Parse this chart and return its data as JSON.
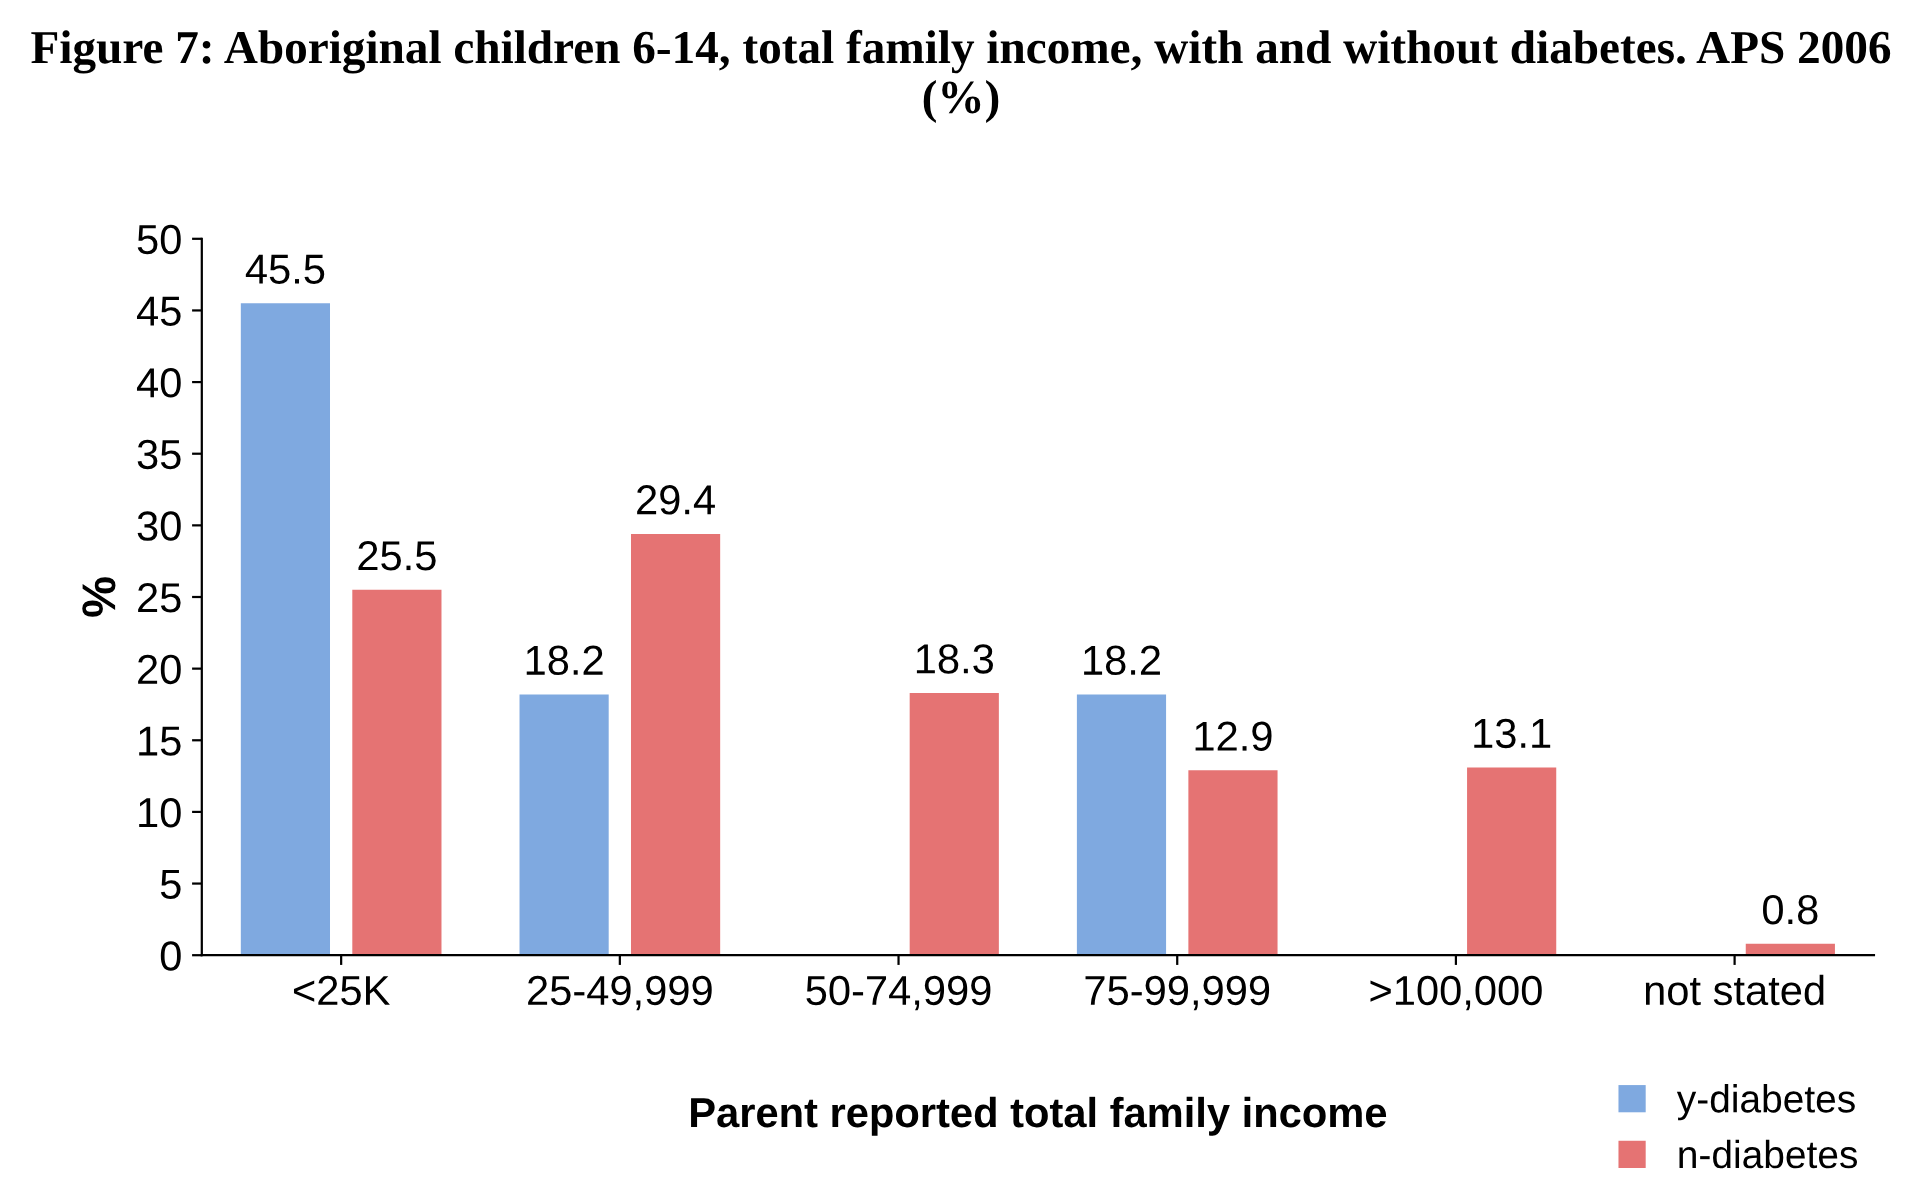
{
  "chart_data": {
    "type": "bar",
    "title": "Figure 7: Aboriginal children 6-14, total family income, with and without diabetes. APS 2006 (%)",
    "xlabel": "Parent reported total family income",
    "ylabel": "%",
    "categories": [
      "<25K",
      "25-49,999",
      "50-74,999",
      "75-99,999",
      ">100,000",
      "not stated"
    ],
    "series": [
      {
        "name": "y-diabetes",
        "color": "#7fa9e0",
        "values": [
          45.5,
          18.2,
          null,
          18.2,
          null,
          null
        ]
      },
      {
        "name": "n-diabetes",
        "color": "#e57373",
        "values": [
          25.5,
          29.4,
          18.3,
          12.9,
          13.1,
          0.8
        ]
      }
    ],
    "ylim": [
      0,
      50
    ],
    "yticks": [
      0,
      5,
      10,
      15,
      20,
      25,
      30,
      35,
      40,
      45,
      50
    ],
    "data_labels": true,
    "legend": "bottom right",
    "grid": false
  }
}
